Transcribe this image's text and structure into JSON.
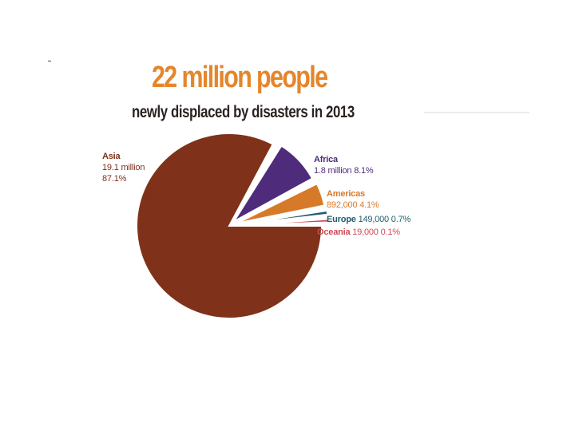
{
  "colors": {
    "title": "#e4862b",
    "subtitle": "#2a2320",
    "Asia": "#7f3219",
    "Africa": "#4f2b7c",
    "Americas": "#d67a2a",
    "Europe": "#1e5f6e",
    "Oceania": "#cd4a58"
  },
  "chart_data": {
    "type": "pie",
    "title": "22 million people",
    "subtitle": "newly displaced by disasters in 2013",
    "slices": [
      {
        "name": "Asia",
        "amount": "19.1 million",
        "percent_label": "87.1%",
        "value": 87.1,
        "color": "#7f3219"
      },
      {
        "name": "Africa",
        "amount": "1.8 million",
        "percent_label": "8.1%",
        "value": 8.1,
        "color": "#4f2b7c"
      },
      {
        "name": "Americas",
        "amount": "892,000",
        "percent_label": "4.1%",
        "value": 4.1,
        "color": "#d67a2a"
      },
      {
        "name": "Europe",
        "amount": "149,000",
        "percent_label": "0.7%",
        "value": 0.7,
        "color": "#1e5f6e"
      },
      {
        "name": "Oceania",
        "amount": "19,000",
        "percent_label": "0.1%",
        "value": 0.1,
        "color": "#cd4a58"
      }
    ]
  }
}
